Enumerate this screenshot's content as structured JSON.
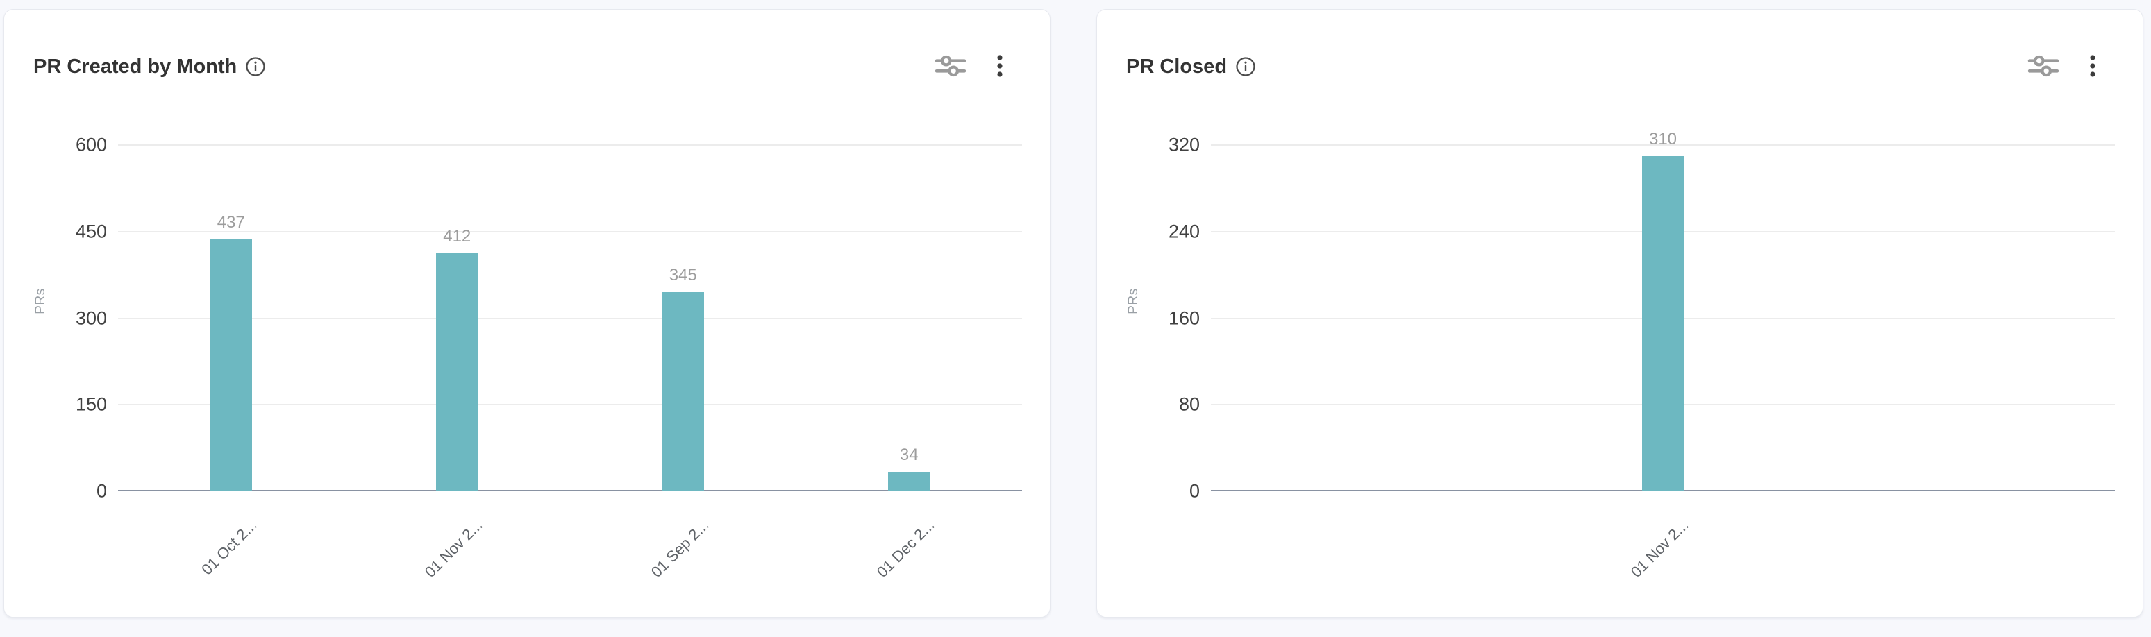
{
  "theme": {
    "page_bg": "#f7f8fc",
    "card_bg": "#ffffff",
    "card_border": "#e7e9ef",
    "bar_color": "#6db8c1",
    "grid_color": "#ececec",
    "axis_color": "#8992a2",
    "title_color": "#333333",
    "tick_color": "#414141",
    "value_label_color": "#9c9c9c",
    "x_label_color": "#5f6368",
    "axis_title_color": "#9aa0a6",
    "action_icon_color": "#9a9a9a",
    "menu_icon_color": "#3c3c3c"
  },
  "icons": {
    "info": "info-icon (circled i)",
    "filter": "filter-sliders-icon (two horizontal sliders)",
    "menu": "kebab-menu-icon (vertical three dots)"
  },
  "chart_data": [
    {
      "type": "bar",
      "title": "PR Created by Month",
      "categories": [
        "01 Oct 2...",
        "01 Nov 2...",
        "01 Sep 2...",
        "01 Dec 2..."
      ],
      "values": [
        437,
        412,
        345,
        34
      ],
      "xlabel": "",
      "ylabel": "PRs",
      "ylim": [
        0,
        600
      ],
      "yticks": [
        0,
        150,
        300,
        450,
        600
      ],
      "grid": true,
      "legend": false,
      "value_labels_shown": true
    },
    {
      "type": "bar",
      "title": "PR Closed",
      "categories": [
        "01 Nov 2..."
      ],
      "values": [
        310
      ],
      "xlabel": "",
      "ylabel": "PRs",
      "ylim": [
        0,
        320
      ],
      "yticks": [
        0,
        80,
        160,
        240,
        320
      ],
      "grid": true,
      "legend": false,
      "value_labels_shown": true
    }
  ]
}
